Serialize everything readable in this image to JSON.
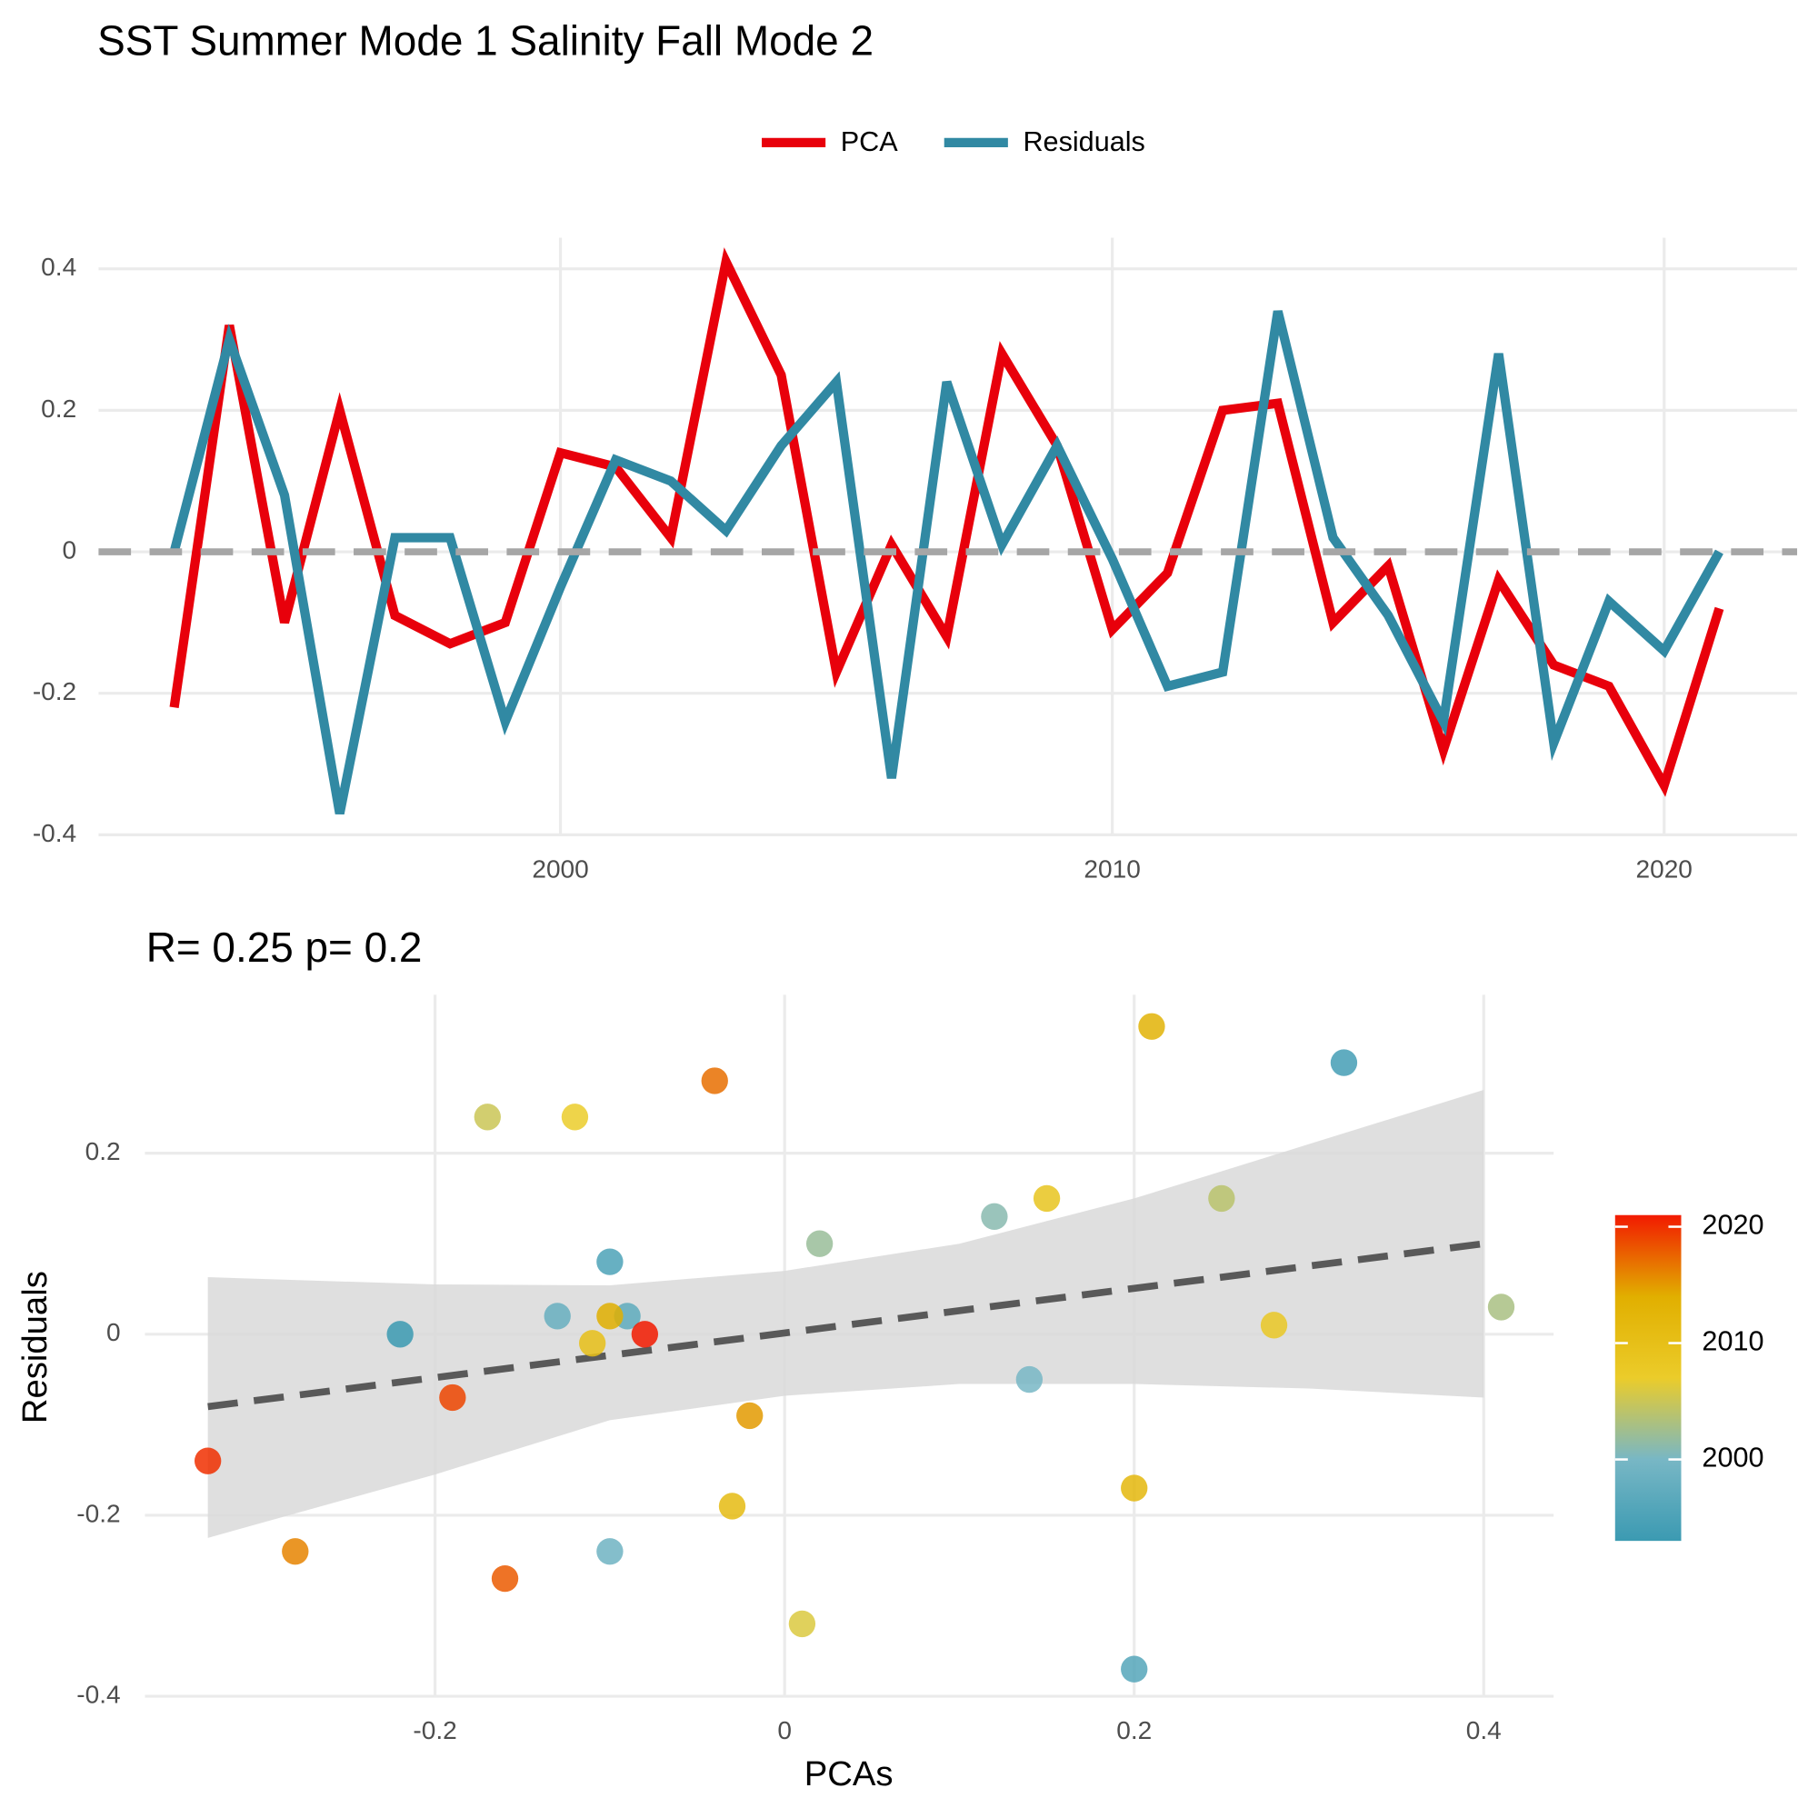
{
  "chart_data": [
    {
      "type": "line",
      "title": "SST Summer Mode 1 Salinity Fall Mode 2",
      "x": [
        1993,
        1994,
        1995,
        1996,
        1997,
        1998,
        1999,
        2000,
        2001,
        2002,
        2003,
        2004,
        2005,
        2006,
        2007,
        2008,
        2009,
        2010,
        2011,
        2012,
        2013,
        2014,
        2015,
        2016,
        2017,
        2018,
        2019,
        2020,
        2021
      ],
      "series": [
        {
          "name": "PCA",
          "color": "#e8000b",
          "values": [
            -0.22,
            0.32,
            -0.1,
            0.2,
            -0.09,
            -0.13,
            -0.1,
            0.14,
            0.12,
            0.02,
            0.41,
            0.25,
            -0.17,
            0.01,
            -0.12,
            0.28,
            0.15,
            -0.11,
            -0.03,
            0.2,
            0.21,
            -0.1,
            -0.02,
            -0.28,
            -0.04,
            -0.16,
            -0.19,
            -0.33,
            -0.08
          ]
        },
        {
          "name": "Residuals",
          "color": "#3189a3",
          "values": [
            0.0,
            0.3,
            0.08,
            -0.37,
            0.02,
            0.02,
            -0.24,
            -0.05,
            0.13,
            0.1,
            0.03,
            0.15,
            0.24,
            -0.32,
            0.24,
            0.01,
            0.15,
            -0.01,
            -0.19,
            -0.17,
            0.34,
            0.02,
            -0.09,
            -0.24,
            0.28,
            -0.27,
            -0.07,
            -0.14,
            0.0
          ]
        }
      ],
      "xlim": [
        1991.63,
        2022.41
      ],
      "xticks": [
        2000,
        2010,
        2020
      ],
      "ylim": [
        -0.4,
        0.444
      ],
      "yticks": [
        -0.4,
        -0.2,
        0.0,
        0.2,
        0.4
      ],
      "hline": 0.0,
      "grid": true,
      "legend": "top"
    },
    {
      "type": "scatter",
      "title": "R= 0.25  p= 0.2",
      "x_label": "PCAs",
      "y_label": "Residuals",
      "x": [
        -0.22,
        0.32,
        -0.1,
        0.2,
        -0.09,
        -0.13,
        -0.1,
        0.14,
        0.12,
        0.02,
        0.41,
        0.25,
        -0.17,
        0.01,
        -0.12,
        0.28,
        0.15,
        -0.11,
        -0.03,
        0.2,
        0.21,
        -0.1,
        -0.02,
        -0.28,
        -0.04,
        -0.16,
        -0.19,
        -0.33,
        -0.08
      ],
      "values": [
        0.0,
        0.3,
        0.08,
        -0.37,
        0.02,
        0.02,
        -0.24,
        -0.05,
        0.13,
        0.1,
        0.03,
        0.15,
        0.24,
        -0.32,
        0.24,
        0.01,
        0.15,
        -0.01,
        -0.19,
        -0.17,
        0.34,
        0.02,
        -0.09,
        -0.24,
        0.28,
        -0.27,
        -0.07,
        -0.14,
        0.0
      ],
      "year": [
        1993,
        1994,
        1995,
        1996,
        1997,
        1998,
        1999,
        2000,
        2001,
        2002,
        2003,
        2004,
        2005,
        2006,
        2007,
        2008,
        2009,
        2010,
        2011,
        2012,
        2013,
        2014,
        2015,
        2016,
        2017,
        2018,
        2019,
        2020,
        2021
      ],
      "fit": {
        "x": [
          -0.33,
          0.4
        ],
        "y": [
          -0.08,
          0.1
        ],
        "color": "#595959"
      },
      "band": {
        "x": [
          -0.33,
          -0.2,
          -0.1,
          0,
          0.1,
          0.2,
          0.3,
          0.4
        ],
        "upper": [
          0.063,
          0.055,
          0.054,
          0.07,
          0.1,
          0.15,
          0.21,
          0.27
        ],
        "lower": [
          -0.225,
          -0.155,
          -0.095,
          -0.068,
          -0.055,
          -0.055,
          -0.06,
          -0.07
        ],
        "color": "#d9d9d9"
      },
      "xlim": [
        -0.366,
        0.44
      ],
      "xticks": [
        -0.2,
        0.0,
        0.2,
        0.4
      ],
      "ylim": [
        -0.4,
        0.375
      ],
      "yticks": [
        -0.4,
        -0.2,
        0.0,
        0.2
      ],
      "grid": true,
      "colorbar": {
        "lim": [
          1993,
          2021
        ],
        "ticks": [
          2000,
          2010,
          2020
        ],
        "colors": [
          "#3B9AB2",
          "#78B7C5",
          "#EBCC2A",
          "#E1AF00",
          "#F21A00"
        ]
      }
    }
  ]
}
